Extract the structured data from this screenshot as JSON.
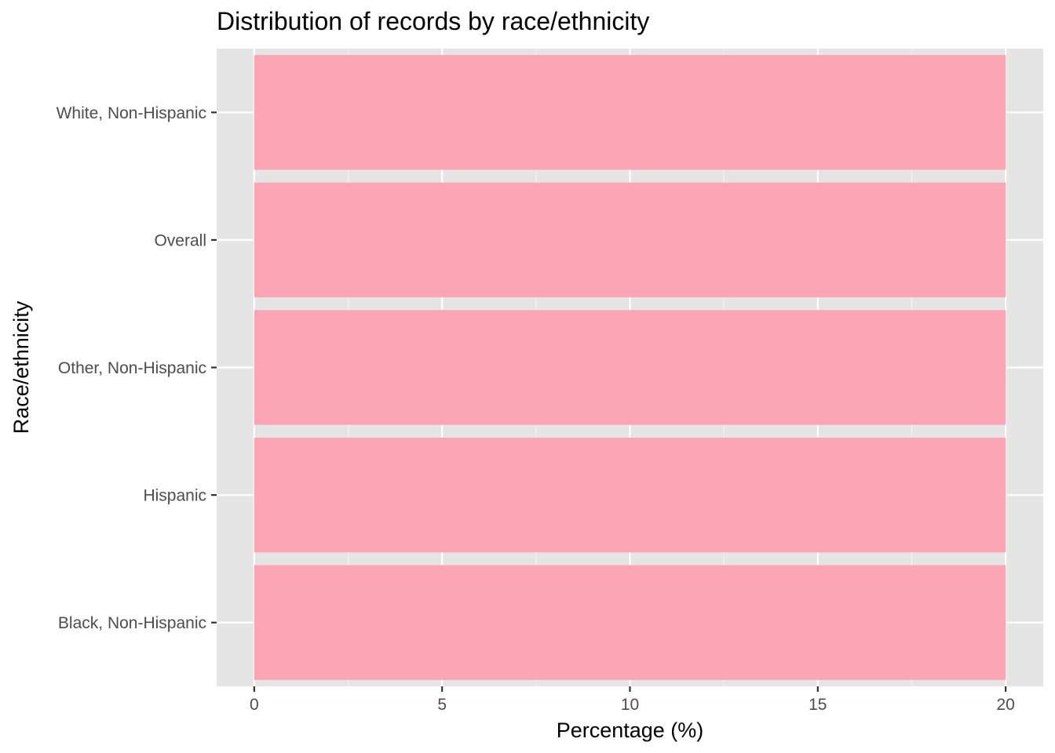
{
  "chart_data": {
    "type": "bar",
    "orientation": "horizontal",
    "title": "Distribution of records by race/ethnicity",
    "xlabel": "Percentage (%)",
    "ylabel": "Race/ethnicity",
    "categories": [
      "White, Non-Hispanic",
      "Overall",
      "Other, Non-Hispanic",
      "Hispanic",
      "Black, Non-Hispanic"
    ],
    "values": [
      20,
      20,
      20,
      20,
      20
    ],
    "xlim": [
      -1,
      21
    ],
    "xticks": [
      0,
      5,
      10,
      15,
      20
    ],
    "xtick_labels": [
      "0",
      "5",
      "10",
      "15",
      "20"
    ],
    "grid": true,
    "legend": "none",
    "colors": {
      "bar": "#fca5b5",
      "panel": "#e5e5e5",
      "grid_major": "#ffffff",
      "grid_minor": "#f2f2f2",
      "tick": "#333333",
      "tick_label": "#4d4d4d"
    }
  }
}
